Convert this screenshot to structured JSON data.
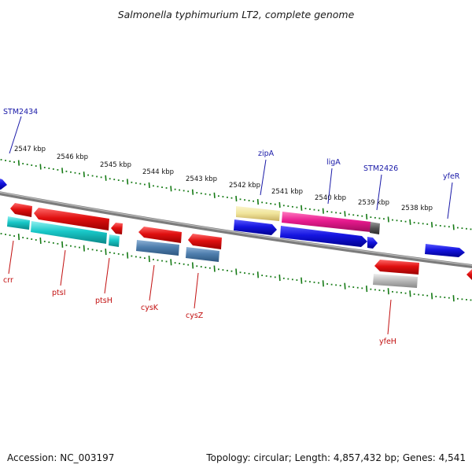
{
  "title": "Salmonella typhimurium LT2, complete genome",
  "accession": "Accession: NC_003197",
  "summary": "Topology: circular; Length: 4,857,432 bp; Genes: 4,541",
  "scale_labels": [
    "2547 kbp",
    "2546 kbp",
    "2545 kbp",
    "2544 kbp",
    "2543 kbp",
    "2542 kbp",
    "2541 kbp",
    "2540 kbp",
    "2539 kbp",
    "2538 kbp"
  ],
  "genes_forward": [
    "STM2434",
    "zipA",
    "ligA",
    "STM2426",
    "yfeR"
  ],
  "genes_reverse": [
    "crr",
    "ptsI",
    "ptsH",
    "cysK",
    "cysZ",
    "yfeH"
  ],
  "colors": {
    "backbone": "#7c7c7c",
    "tick_green": "#157a15",
    "forward_label": "#1a1aa8",
    "reverse_label": "#c21010",
    "red": "#e01010",
    "blue": "#1515e0",
    "cyan": "#18c8c8",
    "steel": "#4f7fae",
    "yellow": "#f0e49a",
    "magenta": "#e81a8e",
    "gray": "#b8b8b8"
  }
}
